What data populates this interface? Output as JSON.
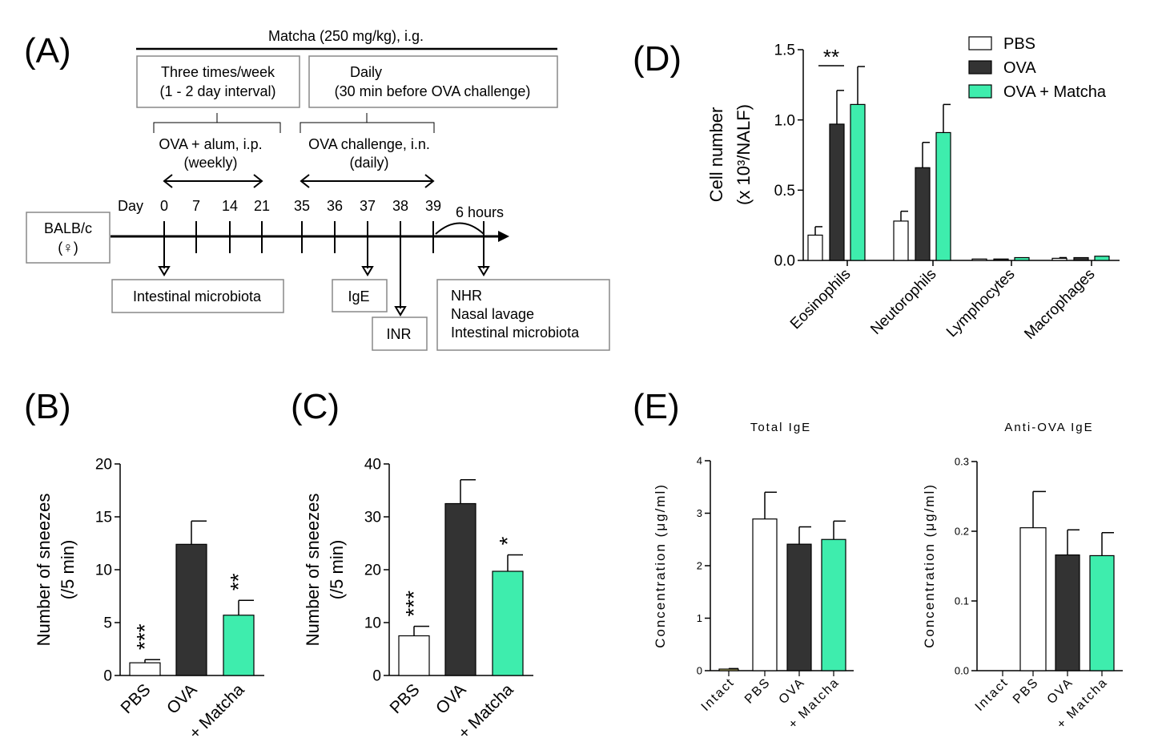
{
  "panel_labels": {
    "a": "(A)",
    "b": "(B)",
    "c": "(C)",
    "d": "(D)",
    "e": "(E)"
  },
  "schema": {
    "matcha": "Matcha (250 mg/kg), i.g.",
    "box1_l1": "Three times/week",
    "box1_l2": "(1 - 2 day interval)",
    "box2_l1": "Daily",
    "box2_l2": "(30 min before OVA challenge)",
    "sens_l1": "OVA + alum, i.p.",
    "sens_l2": "(weekly)",
    "chal_l1": "OVA challenge, i.n.",
    "chal_l2": "(daily)",
    "day_label": "Day",
    "days": [
      "0",
      "7",
      "14",
      "21",
      "35",
      "36",
      "37",
      "38",
      "39"
    ],
    "six_hours": "6 hours",
    "mouse_l1": "BALB/c",
    "mouse_l2": "(♀)",
    "out_microbiota": "Intestinal  microbiota",
    "out_ige": "IgE",
    "out_inr": "INR",
    "out_final": [
      "NHR",
      "Nasal lavage",
      "Intestinal  microbiota"
    ]
  },
  "colors": {
    "PBS": "#ffffff",
    "OVA": "#333333",
    "OVA + Matcha": "#3eedad",
    "Intact": "#f5ef8a"
  },
  "chart_data": [
    {
      "id": "B",
      "type": "bar",
      "ylabel": [
        "Number of sneezes",
        "(/5 min)"
      ],
      "ylim": [
        0,
        20
      ],
      "yticks": [
        "0",
        "5",
        "10",
        "15",
        "20"
      ],
      "categories": [
        "PBS",
        "OVA",
        "+ Matcha"
      ],
      "values": [
        1.2,
        12.4,
        5.7
      ],
      "errors": [
        1.5,
        14.6,
        7.1
      ],
      "significance": [
        "***",
        "",
        "**"
      ],
      "fill": [
        "PBS",
        "OVA",
        "OVA + Matcha"
      ]
    },
    {
      "id": "C",
      "type": "bar",
      "ylabel": [
        "Number of sneezes",
        "(/5 min)"
      ],
      "ylim": [
        0,
        40
      ],
      "yticks": [
        "0",
        "10",
        "20",
        "30",
        "40"
      ],
      "categories": [
        "PBS",
        "OVA",
        "+ Matcha"
      ],
      "values": [
        7.5,
        32.5,
        19.7
      ],
      "errors": [
        9.3,
        37,
        22.8
      ],
      "significance": [
        "***",
        "",
        "*"
      ],
      "fill": [
        "PBS",
        "OVA",
        "OVA + Matcha"
      ]
    },
    {
      "id": "D",
      "type": "bar",
      "ylabel": [
        "Cell number",
        "(x 10³/NALF)"
      ],
      "ylim": [
        0,
        1.5
      ],
      "yticks": [
        "0.0",
        "0.5",
        "1.0",
        "1.5"
      ],
      "categories": [
        "Eosinophils",
        "Neutorophils",
        "Lymphocytes",
        "Macrophages"
      ],
      "series": [
        {
          "name": "PBS",
          "values": [
            0.18,
            0.28,
            0.01,
            0.015
          ],
          "errors": [
            0.24,
            0.35,
            0.01,
            0.02
          ]
        },
        {
          "name": "OVA",
          "values": [
            0.97,
            0.66,
            0.01,
            0.02
          ],
          "errors": [
            1.21,
            0.84,
            0.01,
            0.02
          ]
        },
        {
          "name": "OVA + Matcha",
          "values": [
            1.11,
            0.91,
            0.02,
            0.03
          ],
          "errors": [
            1.38,
            1.11,
            0.02,
            0.03
          ]
        }
      ],
      "significance": "**",
      "legend": "top-right"
    },
    {
      "id": "E1",
      "type": "bar",
      "title": "Total IgE",
      "ylabel": [
        "Concentration (μg/ml)"
      ],
      "ylim": [
        0,
        4
      ],
      "yticks": [
        "0",
        "1",
        "2",
        "3",
        "4"
      ],
      "categories": [
        "Intact",
        "PBS",
        "OVA",
        "+ Matcha"
      ],
      "values": [
        0.03,
        2.89,
        2.41,
        2.5
      ],
      "errors": [
        0.04,
        3.4,
        2.74,
        2.85
      ],
      "fill": [
        "Intact",
        "PBS",
        "OVA",
        "OVA + Matcha"
      ]
    },
    {
      "id": "E2",
      "type": "bar",
      "title": "Anti-OVA IgE",
      "ylabel": [
        "Concentration (μg/ml)"
      ],
      "ylim": [
        0,
        0.3
      ],
      "yticks": [
        "0.0",
        "0.1",
        "0.2",
        "0.3"
      ],
      "categories": [
        "Intact",
        "PBS",
        "OVA",
        "+ Matcha"
      ],
      "values": [
        0,
        0.205,
        0.166,
        0.165
      ],
      "errors": [
        0,
        0.257,
        0.202,
        0.198
      ],
      "fill": [
        "Intact",
        "PBS",
        "OVA",
        "OVA + Matcha"
      ]
    }
  ]
}
